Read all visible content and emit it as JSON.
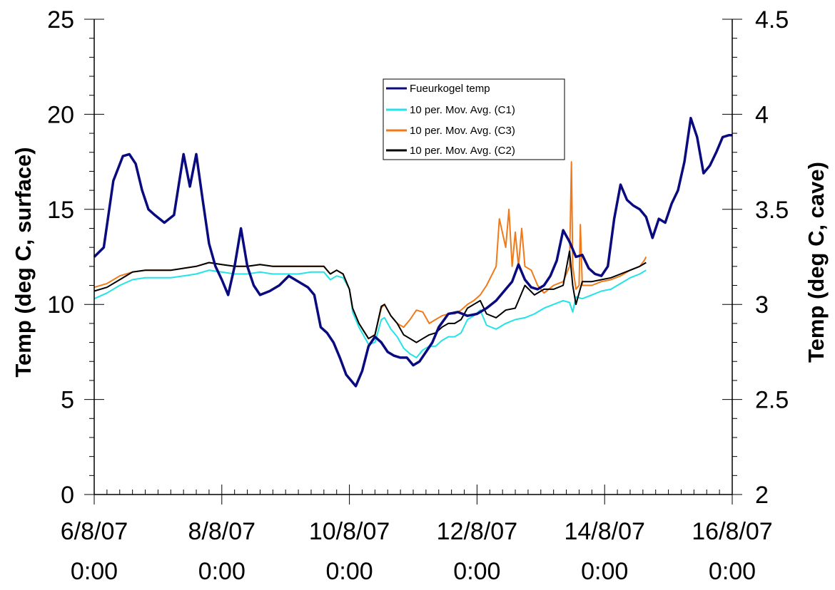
{
  "chart_data": {
    "type": "line",
    "title": "",
    "xlabel": "",
    "ylabel": "Temp (deg C, surface)",
    "y2label": "Temp (deg C, cave)",
    "x_range_days": [
      6,
      16
    ],
    "x_ticks": [
      {
        "day": 6,
        "line1": "6/8/07",
        "line2": "0:00"
      },
      {
        "day": 8,
        "line1": "8/8/07",
        "line2": "0:00"
      },
      {
        "day": 10,
        "line1": "10/8/07",
        "line2": "0:00"
      },
      {
        "day": 12,
        "line1": "12/8/07",
        "line2": "0:00"
      },
      {
        "day": 14,
        "line1": "14/8/07",
        "line2": "0:00"
      },
      {
        "day": 16,
        "line1": "16/8/07",
        "line2": "0:00"
      }
    ],
    "ylim": [
      0,
      25
    ],
    "y_ticks": [
      "0",
      "5",
      "10",
      "15",
      "20",
      "25"
    ],
    "y2lim": [
      2,
      4.5
    ],
    "y2_ticks": [
      "2",
      "2.5",
      "3",
      "3.5",
      "4",
      "4.5"
    ],
    "legend_placement": "top-center",
    "grid": false,
    "series": [
      {
        "name": "Fueurkogel temp",
        "axis": "left",
        "color": "#0a0a80",
        "x": [
          6.0,
          6.15,
          6.3,
          6.45,
          6.55,
          6.65,
          6.75,
          6.85,
          6.95,
          7.1,
          7.25,
          7.4,
          7.5,
          7.6,
          7.7,
          7.8,
          7.9,
          8.0,
          8.1,
          8.2,
          8.3,
          8.4,
          8.5,
          8.6,
          8.75,
          8.9,
          9.05,
          9.2,
          9.35,
          9.45,
          9.55,
          9.65,
          9.75,
          9.85,
          9.95,
          10.1,
          10.2,
          10.3,
          10.4,
          10.5,
          10.6,
          10.7,
          10.8,
          10.9,
          11.0,
          11.1,
          11.2,
          11.3,
          11.4,
          11.55,
          11.7,
          11.85,
          12.0,
          12.15,
          12.3,
          12.45,
          12.55,
          12.65,
          12.75,
          12.85,
          12.95,
          13.05,
          13.15,
          13.25,
          13.35,
          13.45,
          13.55,
          13.65,
          13.75,
          13.85,
          13.95,
          14.05,
          14.15,
          14.25,
          14.35,
          14.45,
          14.55,
          14.65,
          14.75,
          14.85,
          14.95,
          15.05,
          15.15,
          15.25,
          15.35,
          15.45,
          15.55,
          15.65,
          15.75,
          15.85,
          15.95,
          16.0
        ],
        "y": [
          12.5,
          13.0,
          16.5,
          17.8,
          17.9,
          17.4,
          16.0,
          15.0,
          14.7,
          14.3,
          14.7,
          17.9,
          16.2,
          17.9,
          15.5,
          13.2,
          12.0,
          11.3,
          10.5,
          12.0,
          14.0,
          12.0,
          11.0,
          10.5,
          10.7,
          11.0,
          11.5,
          11.2,
          10.9,
          10.5,
          8.8,
          8.5,
          8.0,
          7.2,
          6.3,
          5.7,
          6.5,
          7.8,
          8.3,
          8.0,
          7.5,
          7.3,
          7.2,
          7.2,
          6.8,
          7.0,
          7.5,
          8.0,
          8.8,
          9.5,
          9.6,
          9.4,
          9.5,
          9.8,
          10.2,
          10.8,
          11.2,
          12.1,
          11.3,
          10.9,
          10.8,
          11.0,
          11.5,
          12.3,
          13.9,
          13.3,
          12.5,
          12.6,
          11.9,
          11.6,
          11.5,
          12.0,
          14.5,
          16.3,
          15.5,
          15.2,
          15.0,
          14.6,
          13.5,
          14.5,
          14.3,
          15.3,
          16.0,
          17.5,
          19.8,
          18.8,
          16.9,
          17.3,
          18.0,
          18.8,
          18.9,
          18.9
        ]
      },
      {
        "name": "10 per. Mov. Avg. (C1)",
        "axis": "right",
        "color": "#22e3e8",
        "x": [
          6.0,
          6.2,
          6.4,
          6.6,
          6.8,
          7.0,
          7.2,
          7.4,
          7.6,
          7.8,
          8.0,
          8.2,
          8.4,
          8.6,
          8.8,
          9.0,
          9.2,
          9.4,
          9.6,
          9.7,
          9.8,
          9.9,
          10.0,
          10.05,
          10.15,
          10.3,
          10.4,
          10.5,
          10.55,
          10.65,
          10.75,
          10.85,
          10.95,
          11.05,
          11.15,
          11.25,
          11.35,
          11.45,
          11.55,
          11.65,
          11.75,
          11.85,
          11.95,
          12.05,
          12.15,
          12.3,
          12.45,
          12.6,
          12.75,
          12.9,
          13.05,
          13.2,
          13.35,
          13.45,
          13.5,
          13.55,
          13.65,
          13.8,
          13.95,
          14.1,
          14.25,
          14.4,
          14.55,
          14.65
        ],
        "y": [
          3.03,
          3.06,
          3.1,
          3.13,
          3.14,
          3.14,
          3.14,
          3.15,
          3.16,
          3.18,
          3.17,
          3.16,
          3.16,
          3.17,
          3.16,
          3.16,
          3.16,
          3.17,
          3.17,
          3.13,
          3.15,
          3.14,
          3.08,
          2.96,
          2.88,
          2.79,
          2.8,
          2.92,
          2.93,
          2.87,
          2.83,
          2.77,
          2.74,
          2.72,
          2.76,
          2.78,
          2.78,
          2.81,
          2.83,
          2.83,
          2.85,
          2.92,
          2.94,
          2.97,
          2.89,
          2.87,
          2.9,
          2.92,
          2.93,
          2.95,
          2.98,
          3.0,
          3.02,
          3.01,
          2.96,
          3.04,
          3.03,
          3.05,
          3.07,
          3.08,
          3.11,
          3.14,
          3.16,
          3.18
        ]
      },
      {
        "name": "10 per. Mov. Avg. (C3)",
        "axis": "right",
        "color": "#f07a1a",
        "x": [
          6.0,
          6.2,
          6.4,
          6.6,
          6.8,
          7.0,
          7.2,
          7.4,
          7.6,
          7.8,
          8.0,
          8.2,
          8.4,
          8.6,
          8.8,
          9.0,
          9.2,
          9.4,
          9.6,
          9.7,
          9.8,
          9.9,
          10.0,
          10.05,
          10.15,
          10.3,
          10.4,
          10.5,
          10.55,
          10.65,
          10.75,
          10.85,
          10.95,
          11.05,
          11.15,
          11.25,
          11.35,
          11.45,
          11.55,
          11.65,
          11.75,
          11.85,
          11.95,
          12.05,
          12.15,
          12.3,
          12.35,
          12.45,
          12.5,
          12.55,
          12.6,
          12.65,
          12.7,
          12.75,
          12.85,
          12.95,
          13.05,
          13.2,
          13.35,
          13.45,
          13.48,
          13.5,
          13.55,
          13.6,
          13.62,
          13.65,
          13.8,
          13.95,
          14.1,
          14.25,
          14.4,
          14.55,
          14.62,
          14.65
        ],
        "y": [
          3.09,
          3.11,
          3.15,
          3.17,
          3.18,
          3.18,
          3.18,
          3.19,
          3.2,
          3.22,
          3.21,
          3.2,
          3.2,
          3.21,
          3.2,
          3.2,
          3.2,
          3.2,
          3.2,
          3.16,
          3.18,
          3.16,
          3.08,
          2.98,
          2.9,
          2.82,
          2.84,
          2.98,
          3.0,
          2.94,
          2.9,
          2.88,
          2.92,
          2.97,
          2.96,
          2.9,
          2.92,
          2.94,
          2.95,
          2.95,
          2.97,
          3.0,
          3.02,
          3.05,
          3.1,
          3.2,
          3.45,
          3.3,
          3.5,
          3.2,
          3.38,
          3.2,
          3.4,
          3.2,
          3.18,
          3.1,
          3.06,
          3.1,
          3.12,
          3.2,
          3.75,
          3.2,
          3.08,
          3.1,
          3.42,
          3.1,
          3.1,
          3.12,
          3.13,
          3.15,
          3.18,
          3.2,
          3.23,
          3.25
        ]
      },
      {
        "name": "10 per. Mov. Avg. (C2)",
        "axis": "right",
        "color": "#000000",
        "x": [
          6.0,
          6.2,
          6.4,
          6.6,
          6.8,
          7.0,
          7.2,
          7.4,
          7.6,
          7.8,
          8.0,
          8.2,
          8.4,
          8.6,
          8.8,
          9.0,
          9.2,
          9.4,
          9.6,
          9.7,
          9.8,
          9.9,
          10.0,
          10.05,
          10.15,
          10.3,
          10.4,
          10.5,
          10.55,
          10.65,
          10.75,
          10.85,
          10.95,
          11.05,
          11.15,
          11.25,
          11.35,
          11.45,
          11.55,
          11.65,
          11.75,
          11.85,
          11.95,
          12.05,
          12.15,
          12.3,
          12.45,
          12.6,
          12.75,
          12.9,
          13.05,
          13.2,
          13.35,
          13.45,
          13.5,
          13.55,
          13.65,
          13.8,
          13.95,
          14.1,
          14.25,
          14.4,
          14.55,
          14.65
        ],
        "y": [
          3.07,
          3.09,
          3.13,
          3.17,
          3.18,
          3.18,
          3.18,
          3.19,
          3.2,
          3.22,
          3.21,
          3.2,
          3.2,
          3.21,
          3.2,
          3.2,
          3.2,
          3.2,
          3.2,
          3.16,
          3.18,
          3.16,
          3.08,
          2.98,
          2.9,
          2.82,
          2.84,
          2.99,
          3.0,
          2.94,
          2.9,
          2.84,
          2.82,
          2.8,
          2.82,
          2.84,
          2.85,
          2.88,
          2.9,
          2.9,
          2.92,
          2.98,
          3.0,
          3.02,
          2.95,
          2.93,
          2.97,
          2.98,
          3.1,
          3.05,
          3.08,
          3.08,
          3.1,
          3.28,
          3.1,
          3.0,
          3.12,
          3.12,
          3.13,
          3.14,
          3.16,
          3.18,
          3.2,
          3.22
        ]
      }
    ]
  }
}
